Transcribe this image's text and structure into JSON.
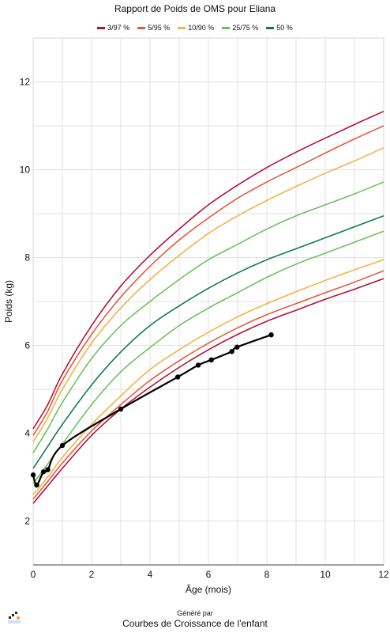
{
  "colors": {
    "p3_97": "#b5123a",
    "p5_95": "#e35a3e",
    "p10_90": "#f6b24a",
    "p25_75": "#6cc25e",
    "p50": "#137a4e",
    "patient": "#000000",
    "grid": "#d9d9d9"
  },
  "footer": {
    "generated_by": "Généré par",
    "app_name": "Courbes de Croissance de l'enfant",
    "logo_icon": "app-logo-icon"
  },
  "chart_data": {
    "type": "line",
    "title": "Rapport de Poids de OMS pour Eliana",
    "xlabel": "Âge (mois)",
    "ylabel": "Poids (kg)",
    "xlim": [
      0,
      12
    ],
    "ylim": [
      1,
      13
    ],
    "x_ticks": [
      0,
      2,
      4,
      6,
      8,
      10,
      12
    ],
    "y_ticks": [
      2,
      4,
      6,
      8,
      10,
      12
    ],
    "grid": true,
    "legend_position": "top-center",
    "legend": [
      {
        "label": "3/97 %",
        "color_key": "p3_97"
      },
      {
        "label": "5/95 %",
        "color_key": "p5_95"
      },
      {
        "label": "10/90 %",
        "color_key": "p10_90"
      },
      {
        "label": "25/75 %",
        "color_key": "p25_75"
      },
      {
        "label": "50 %",
        "color_key": "p50"
      }
    ],
    "percentile_x": [
      0,
      0.5,
      1,
      2,
      3,
      4,
      5,
      6,
      7,
      8,
      9,
      10,
      11,
      12
    ],
    "percentile_series": [
      {
        "group": "3/97 %",
        "color_key": "p3_97",
        "values": [
          2.4,
          2.8,
          3.2,
          3.95,
          4.55,
          5.05,
          5.5,
          5.9,
          6.25,
          6.55,
          6.8,
          7.05,
          7.28,
          7.52
        ]
      },
      {
        "group": "5/95 %",
        "color_key": "p5_95",
        "values": [
          2.5,
          2.9,
          3.32,
          4.05,
          4.65,
          5.2,
          5.65,
          6.05,
          6.4,
          6.7,
          6.95,
          7.2,
          7.44,
          7.7
        ]
      },
      {
        "group": "10/90 %",
        "color_key": "p10_90",
        "values": [
          2.6,
          3.0,
          3.45,
          4.2,
          4.85,
          5.45,
          5.9,
          6.3,
          6.65,
          6.95,
          7.22,
          7.48,
          7.72,
          7.95
        ]
      },
      {
        "group": "25/75 %",
        "color_key": "p25_75",
        "values": [
          2.85,
          3.3,
          3.75,
          4.65,
          5.4,
          5.95,
          6.45,
          6.85,
          7.2,
          7.55,
          7.85,
          8.1,
          8.35,
          8.6
        ]
      },
      {
        "group": "50 %",
        "color_key": "p50",
        "values": [
          3.2,
          3.7,
          4.2,
          5.1,
          5.85,
          6.45,
          6.9,
          7.3,
          7.65,
          7.95,
          8.2,
          8.45,
          8.7,
          8.95
        ]
      },
      {
        "group": "25/75 %",
        "color_key": "p25_75",
        "values": [
          3.55,
          4.1,
          4.7,
          5.7,
          6.45,
          7.0,
          7.5,
          7.95,
          8.3,
          8.65,
          8.95,
          9.2,
          9.45,
          9.72
        ]
      },
      {
        "group": "10/90 %",
        "color_key": "p10_90",
        "values": [
          3.8,
          4.35,
          5.0,
          6.05,
          6.85,
          7.5,
          8.05,
          8.55,
          8.95,
          9.3,
          9.62,
          9.92,
          10.2,
          10.5
        ]
      },
      {
        "group": "5/95 %",
        "color_key": "p5_95",
        "values": [
          3.95,
          4.5,
          5.2,
          6.25,
          7.1,
          7.8,
          8.4,
          8.9,
          9.35,
          9.72,
          10.05,
          10.38,
          10.7,
          11.0
        ]
      },
      {
        "group": "3/97 %",
        "color_key": "p3_97",
        "values": [
          4.1,
          4.65,
          5.35,
          6.45,
          7.35,
          8.05,
          8.65,
          9.2,
          9.65,
          10.05,
          10.4,
          10.72,
          11.03,
          11.33
        ]
      }
    ],
    "patient_points": [
      {
        "x": 0.0,
        "y": 3.05
      },
      {
        "x": 0.12,
        "y": 2.82
      },
      {
        "x": 0.35,
        "y": 3.12
      },
      {
        "x": 0.5,
        "y": 3.17
      },
      {
        "x": 1.0,
        "y": 3.72
      },
      {
        "x": 3.0,
        "y": 4.55
      },
      {
        "x": 4.95,
        "y": 5.28
      },
      {
        "x": 5.65,
        "y": 5.55
      },
      {
        "x": 6.1,
        "y": 5.67
      },
      {
        "x": 6.8,
        "y": 5.86
      },
      {
        "x": 6.98,
        "y": 5.96
      },
      {
        "x": 8.15,
        "y": 6.24
      }
    ]
  }
}
